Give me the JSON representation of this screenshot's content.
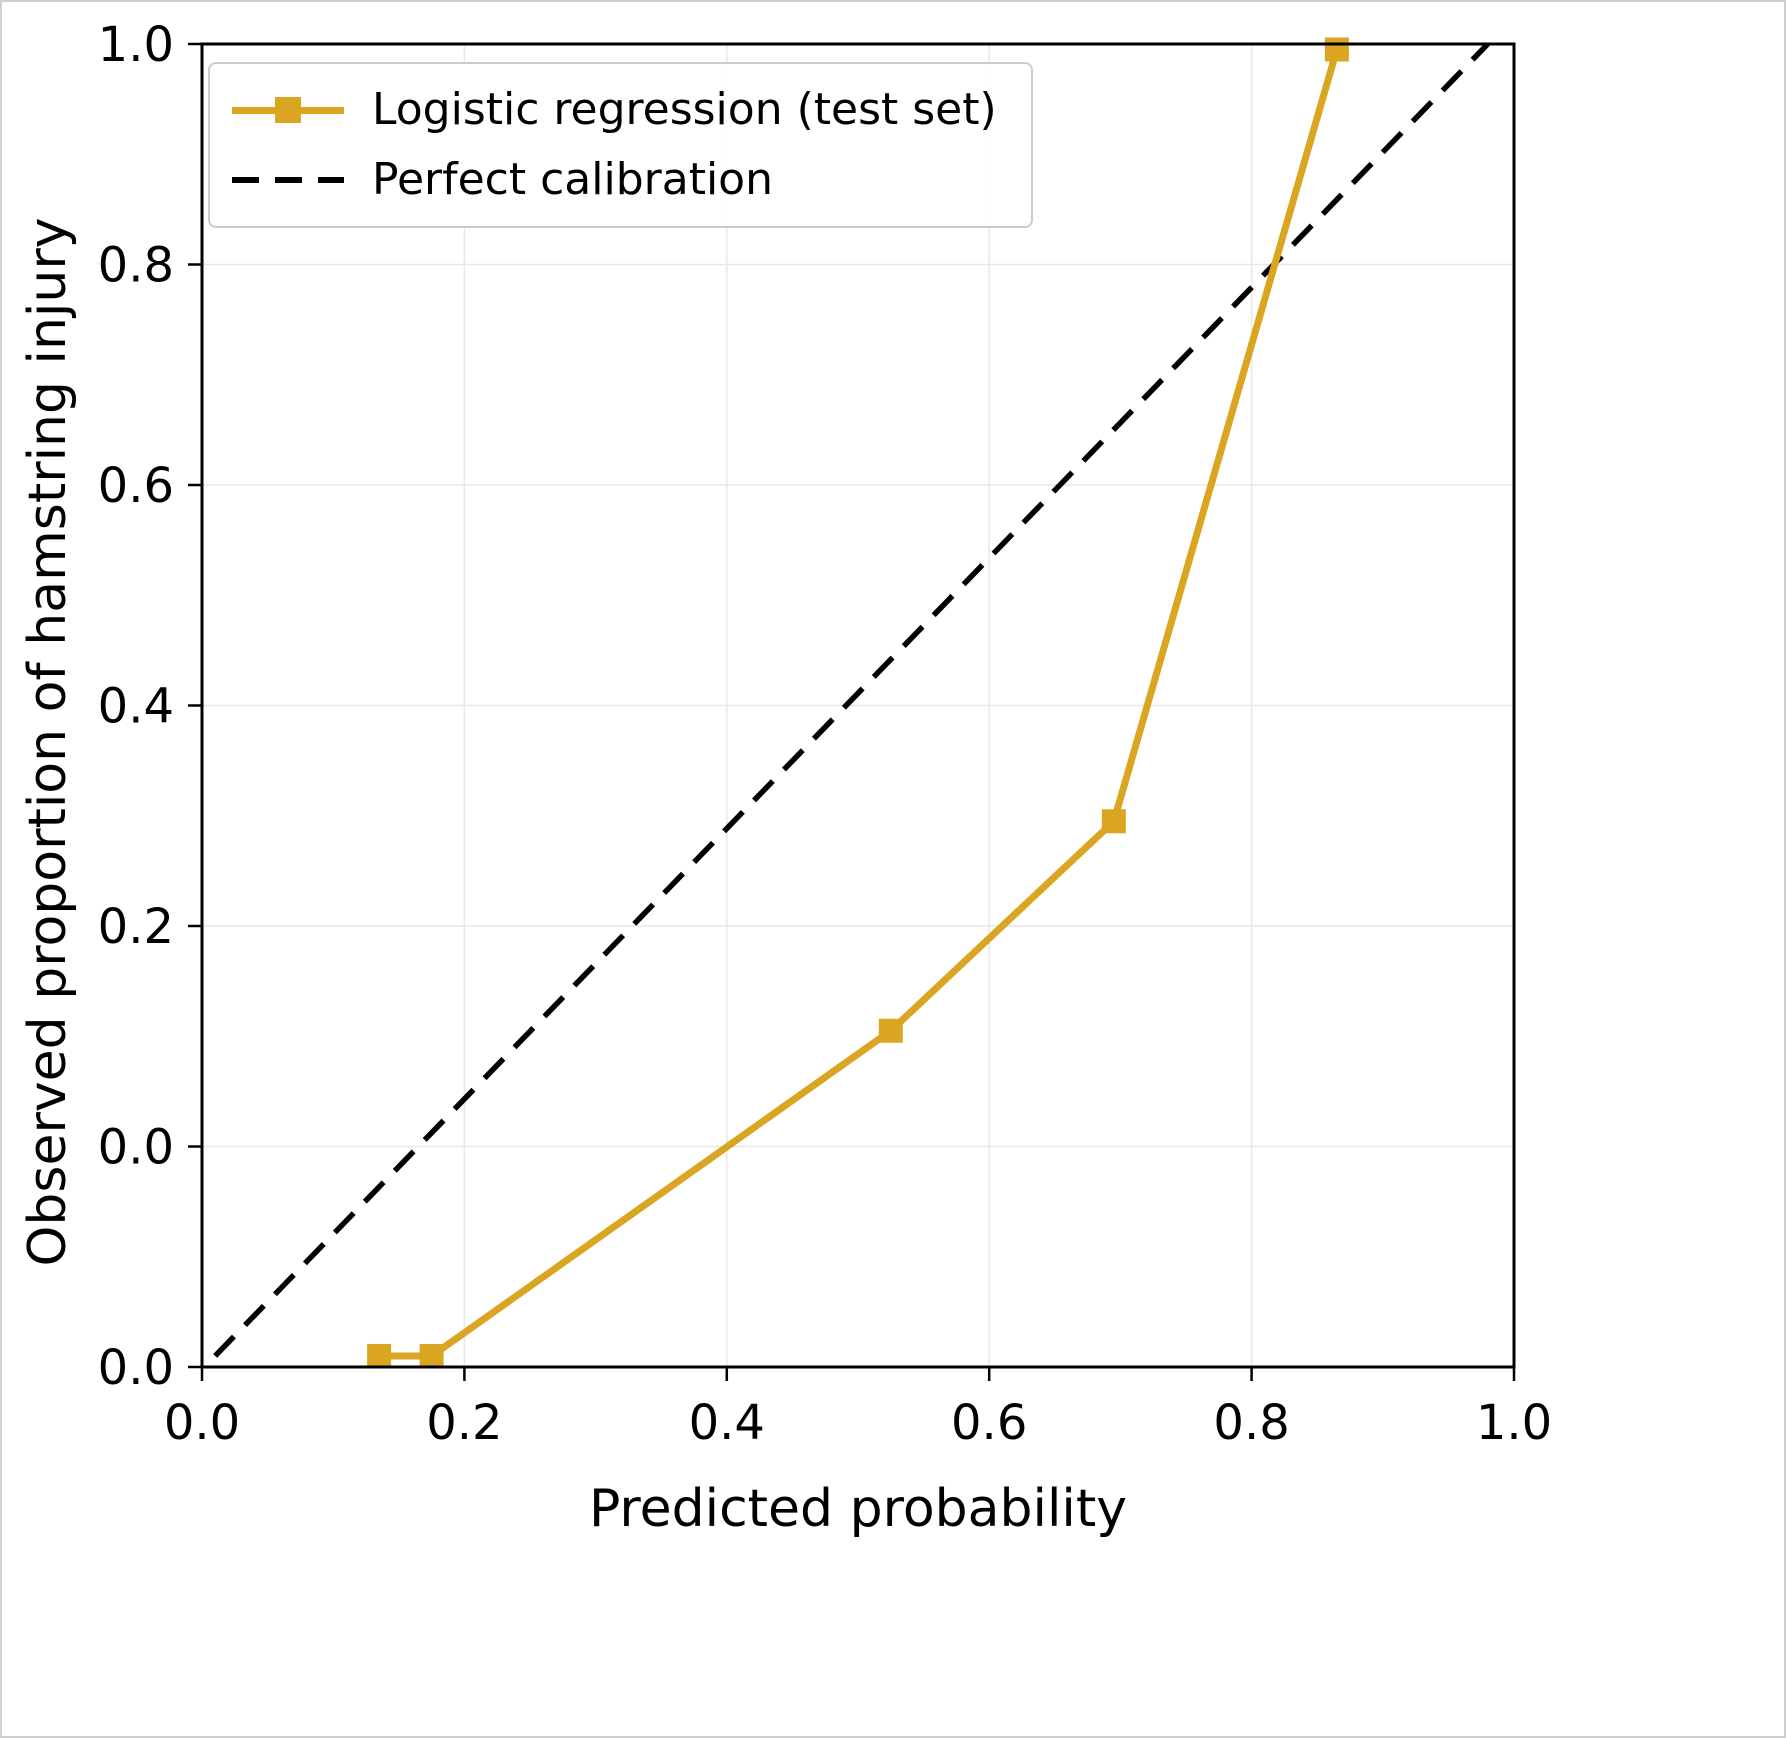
{
  "figure": {
    "background": "#ffffff",
    "border_color": "#cfcfcf"
  },
  "chart_data": {
    "type": "line",
    "title": "",
    "x_axis": {
      "label": "Predicted probability",
      "range": [
        0,
        1
      ],
      "ticks": [
        0,
        0.2,
        0.4,
        0.6,
        0.8,
        1.0
      ],
      "tick_labels": [
        "0.0",
        "0.2",
        "0.4",
        "0.6",
        "0.8",
        "1.0"
      ]
    },
    "y_axis": {
      "label": "Observed proportion of hamstring injury",
      "range": [
        -0.2,
        1.0
      ],
      "tick_positions": [
        -0.2,
        0,
        0.2,
        0.4,
        0.6,
        0.8,
        1.0
      ],
      "tick_labels": [
        "0.0",
        "0.0",
        "0.2",
        "0.4",
        "0.6",
        "0.8",
        "1.0"
      ]
    },
    "grid": {
      "show": true,
      "color": "#e7e7e7"
    },
    "series": [
      {
        "name": "Logistic regression (test set)",
        "color": "#DAA520",
        "marker": "square",
        "x": [
          0.135,
          0.175,
          0.525,
          0.695,
          0.865
        ],
        "y": [
          0.0,
          0.0,
          0.105,
          0.295,
          1.0
        ],
        "y_plot": [
          -0.19,
          -0.19,
          0.105,
          0.295,
          0.995
        ]
      }
    ],
    "reference_line": {
      "name": "Perfect calibration",
      "color": "#000000",
      "style": "dashed",
      "x": [
        0.01,
        0.98
      ],
      "y": [
        0.0,
        1.0
      ],
      "y_plot": [
        -0.19,
        1.0
      ]
    },
    "legend": {
      "position": "upper left",
      "entries": [
        {
          "label": "Logistic regression (test set)"
        },
        {
          "label": "Perfect calibration"
        }
      ]
    }
  }
}
